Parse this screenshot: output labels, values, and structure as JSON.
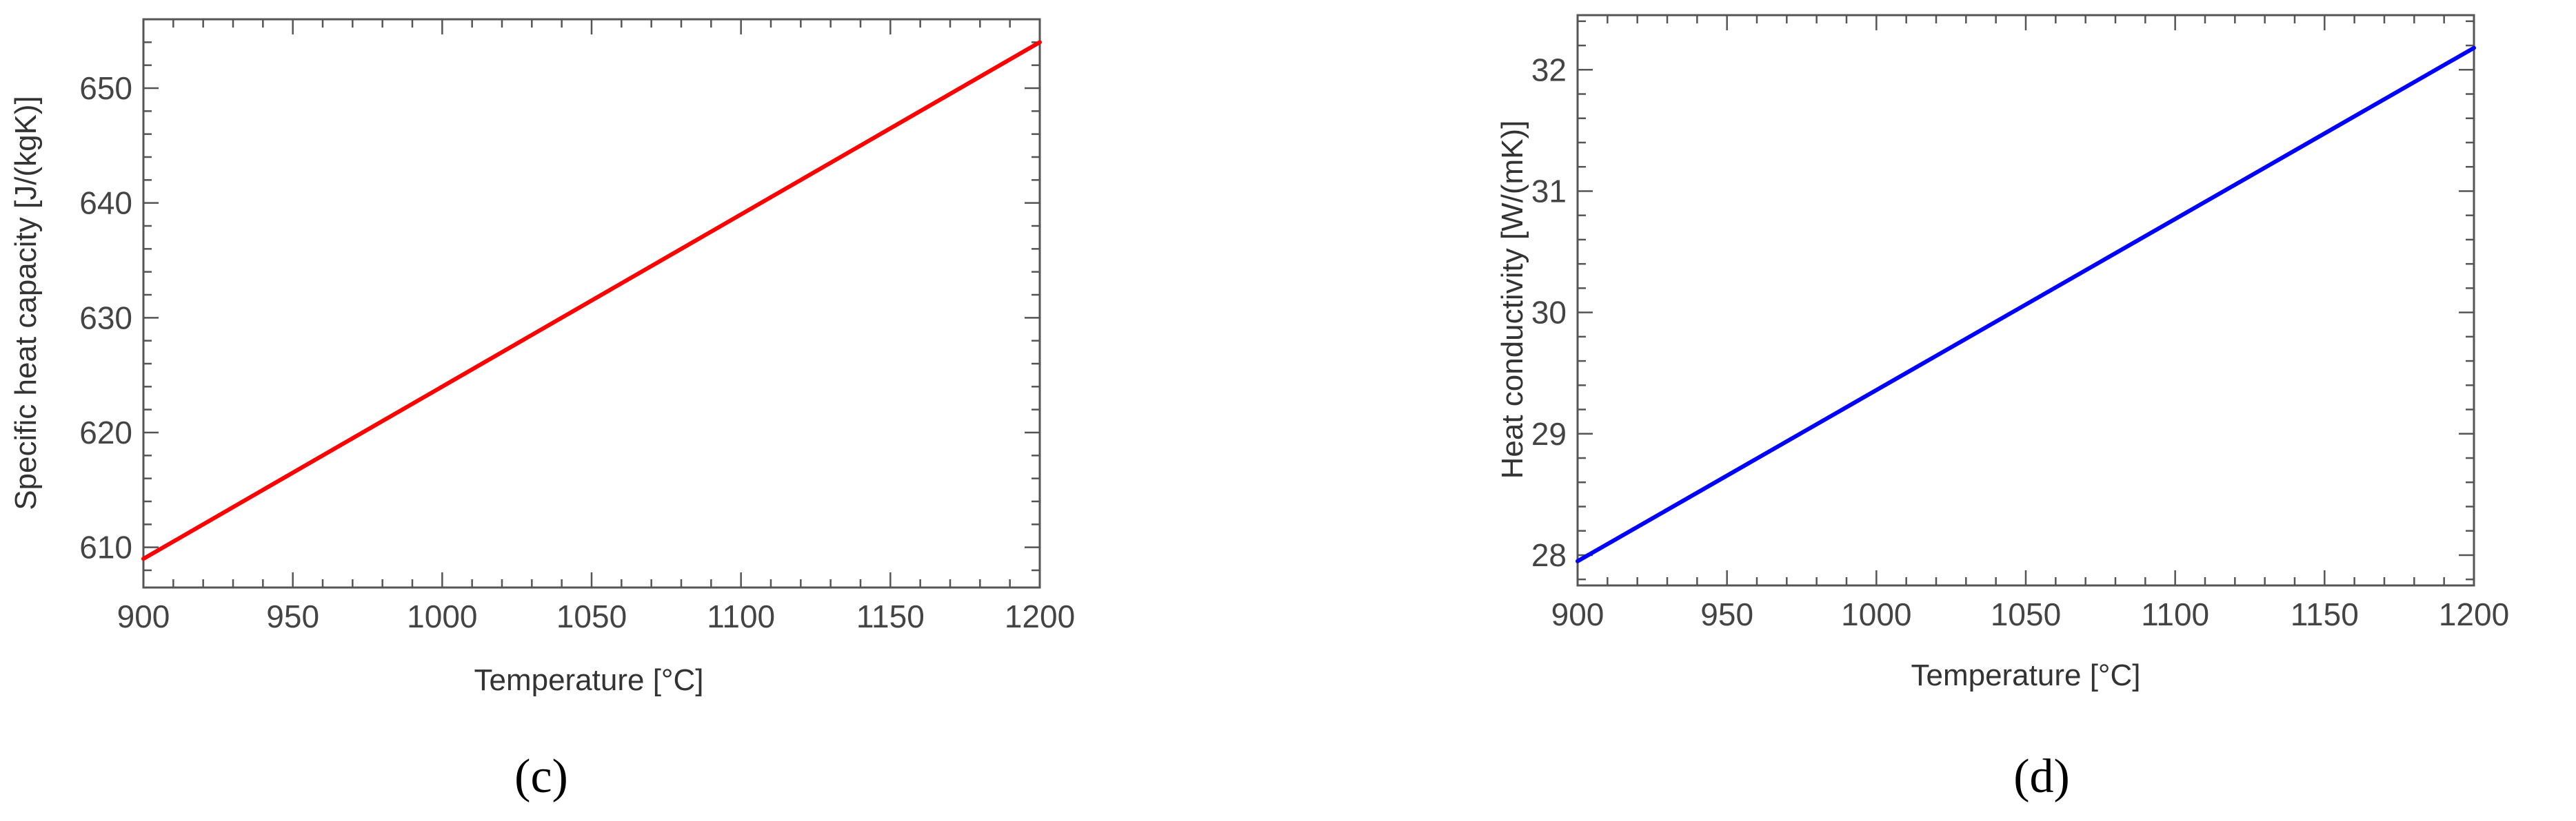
{
  "chart_data": [
    {
      "panel": "(c)",
      "type": "line",
      "title": "",
      "xlabel": "Temperature [°C]",
      "ylabel": "Specific heat capacity [J/(kgK)]",
      "xlim": [
        900,
        1200
      ],
      "ylim": [
        606.5,
        656
      ],
      "x_ticks": [
        900,
        950,
        1000,
        1050,
        1100,
        1150,
        1200
      ],
      "y_ticks": [
        610,
        620,
        630,
        640,
        650
      ],
      "grid": false,
      "series": [
        {
          "color": "#ff0000",
          "x": [
            900,
            1200
          ],
          "y": [
            609,
            654
          ]
        }
      ]
    },
    {
      "panel": "(d)",
      "type": "line",
      "title": "",
      "xlabel": "Temperature [°C]",
      "ylabel": "Heat conductivity [W/(mK)]",
      "xlim": [
        900,
        1200
      ],
      "ylim": [
        27.75,
        32.45
      ],
      "x_ticks": [
        900,
        950,
        1000,
        1050,
        1100,
        1150,
        1200
      ],
      "y_ticks": [
        28,
        29,
        30,
        31,
        32
      ],
      "grid": false,
      "series": [
        {
          "color": "#0000ff",
          "x": [
            900,
            1200
          ],
          "y": [
            27.95,
            32.18
          ]
        }
      ]
    }
  ]
}
